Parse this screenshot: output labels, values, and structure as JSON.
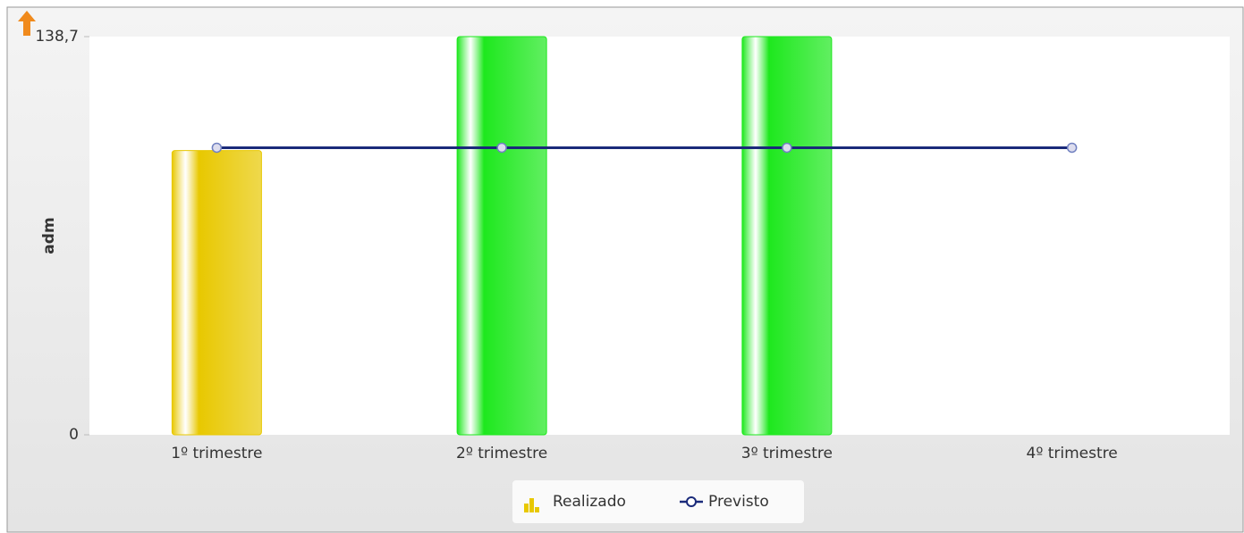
{
  "chart_data": {
    "type": "bar-line",
    "y_label": "adm",
    "categories": [
      "1º trimestre",
      "2º trimestre",
      "3º trimestre",
      "4º trimestre"
    ],
    "series": [
      {
        "name": "Realizado",
        "type": "bar",
        "colors": [
          "#e8c800",
          "#1ee81e",
          "#1ee81e",
          "#1ee81e"
        ],
        "values": [
          99,
          138.7,
          138.7,
          null
        ]
      },
      {
        "name": "Previsto",
        "type": "line",
        "color": "#1a2a7a",
        "values": [
          100,
          100,
          100,
          100
        ]
      }
    ],
    "ylim": [
      0,
      138.7
    ],
    "yticks": [
      0,
      {
        "value": 138.7,
        "label": "138,7"
      }
    ],
    "grid": false
  }
}
